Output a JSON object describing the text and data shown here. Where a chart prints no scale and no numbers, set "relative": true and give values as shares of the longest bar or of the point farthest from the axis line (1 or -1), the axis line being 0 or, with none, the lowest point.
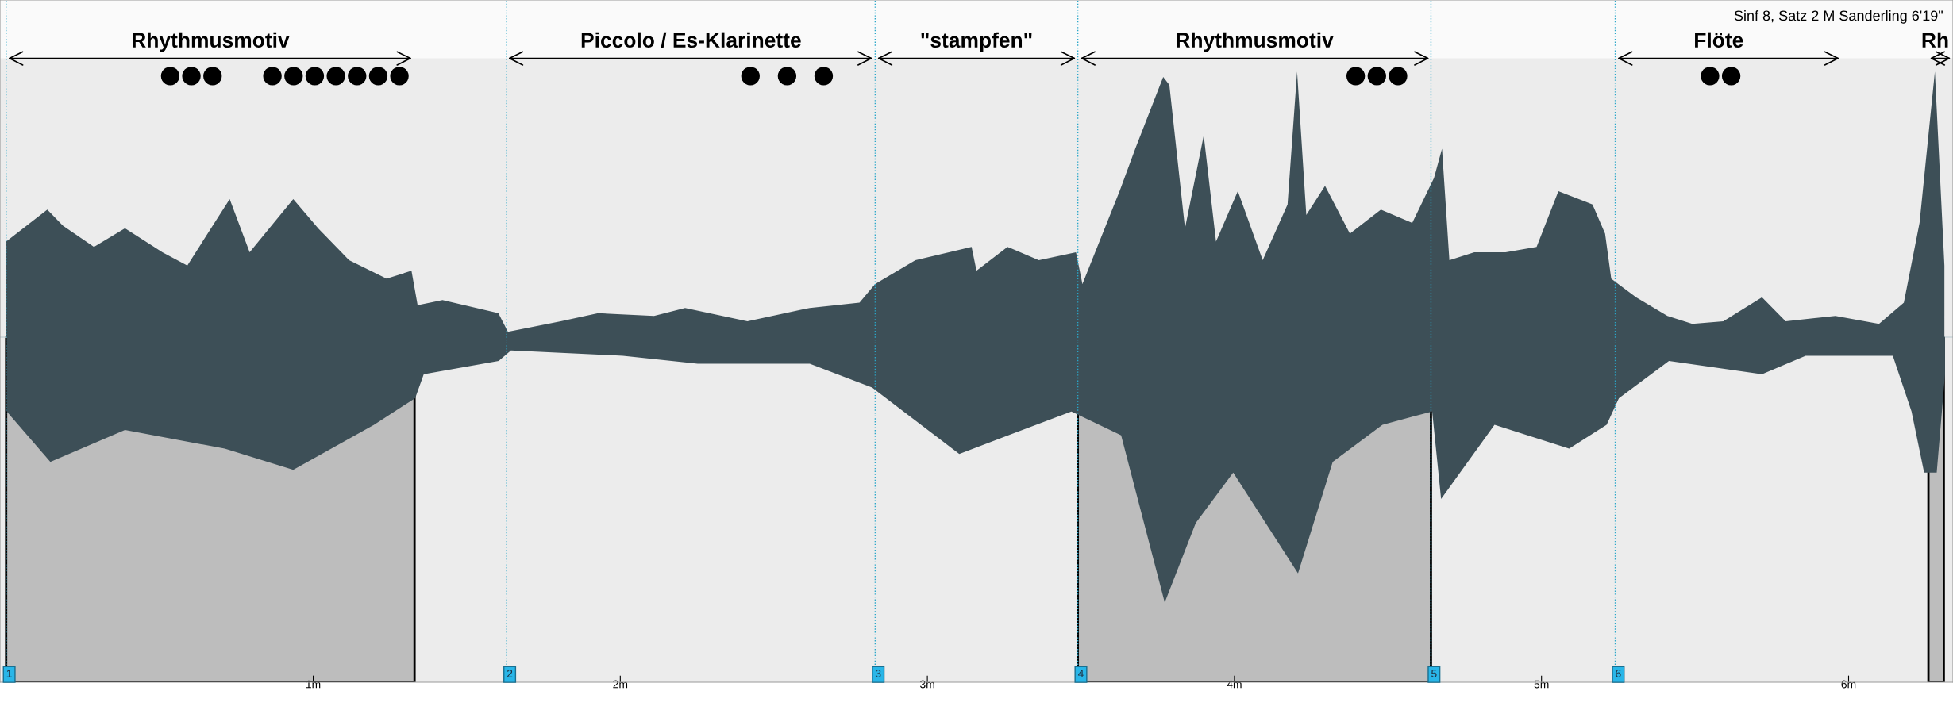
{
  "chart_data": {
    "type": "area",
    "relative": true,
    "annotations": [
      "Sinf 8, Satz 2 M Sanderling 6'19\"",
      "Rhythmusmotiv",
      "Piccolo / Es-Klarinette",
      "\"stampfen\"",
      "Rhythmusmotiv",
      "Flöte",
      "Rh",
      "●●●",
      "●●●●●●●",
      "●  ●  ●",
      "●●●",
      "●●",
      "1",
      "2",
      "3",
      "4",
      "5",
      "6"
    ],
    "series": [
      {
        "color": "#3d4f57",
        "x": [
          0,
          0.134,
          0.185,
          0.286,
          0.387,
          0.509,
          0.59,
          0.728,
          0.793,
          0.935,
          1.016,
          1.117,
          1.239,
          1.32,
          1.34,
          1.421,
          1.603,
          1.634,
          1.806,
          1.928,
          2.11,
          2.211,
          2.414,
          2.617,
          2.779,
          2.83,
          2.961,
          3.144,
          3.16,
          3.261,
          3.363,
          3.484,
          3.505,
          3.626,
          3.677,
          3.768,
          3.788,
          3.839,
          3.9,
          3.94,
          4.011,
          4.092,
          4.173,
          4.204,
          4.234,
          4.295,
          4.376,
          4.477,
          4.579,
          4.65,
          4.676,
          4.7,
          4.781,
          4.883,
          4.984,
          5.055,
          5.166,
          5.207,
          5.227,
          5.308,
          5.41,
          5.491,
          5.592,
          5.718,
          5.795,
          5.957,
          6.099,
          6.18,
          6.231,
          6.281,
          6.312
        ],
        "values": [
          0.36,
          0.48,
          0.42,
          0.34,
          0.41,
          0.32,
          0.27,
          0.52,
          0.32,
          0.52,
          0.41,
          0.29,
          0.22,
          0.25,
          0.12,
          0.14,
          0.09,
          0.02,
          0.06,
          0.09,
          0.08,
          0.11,
          0.06,
          0.11,
          0.13,
          0.2,
          0.29,
          0.34,
          0.25,
          0.34,
          0.29,
          0.32,
          0.2,
          0.55,
          0.71,
          0.98,
          0.95,
          0.41,
          0.76,
          0.36,
          0.55,
          0.29,
          0.5,
          1.0,
          0.46,
          0.57,
          0.39,
          0.48,
          0.43,
          0.6,
          0.71,
          0.29,
          0.32,
          0.32,
          0.34,
          0.55,
          0.5,
          0.39,
          0.22,
          0.15,
          0.08,
          0.05,
          0.06,
          0.15,
          0.06,
          0.08,
          0.05,
          0.13,
          0.43,
          1.0,
          0.27
        ]
      },
      {
        "color": "#3d4f57",
        "x": [
          0.002,
          0.144,
          0.387,
          0.712,
          0.935,
          1.198,
          1.332,
          1.36,
          1.604,
          1.644,
          2.009,
          2.252,
          2.617,
          2.82,
          3.104,
          3.469,
          3.631,
          3.773,
          3.874,
          3.996,
          4.207,
          4.32,
          4.482,
          4.644,
          4.673,
          4.847,
          5.09,
          5.212,
          5.252,
          5.415,
          5.718,
          5.86,
          6.144,
          6.205,
          6.246,
          6.287,
          6.314
        ],
        "values": [
          -0.28,
          -0.47,
          -0.35,
          -0.42,
          -0.5,
          -0.33,
          -0.23,
          -0.14,
          -0.09,
          -0.05,
          -0.07,
          -0.1,
          -0.1,
          -0.19,
          -0.44,
          -0.28,
          -0.37,
          -1.0,
          -0.7,
          -0.51,
          -0.89,
          -0.47,
          -0.33,
          -0.28,
          -0.61,
          -0.33,
          -0.42,
          -0.33,
          -0.23,
          -0.09,
          -0.14,
          -0.07,
          -0.07,
          -0.28,
          -0.51,
          -0.51,
          -0.14
        ]
      }
    ],
    "xlim": [
      -0.02,
      6.34
    ],
    "xticks": [
      {
        "value": 1,
        "label": "1m"
      },
      {
        "value": 2,
        "label": "2m"
      },
      {
        "value": 3,
        "label": "3m"
      },
      {
        "value": 4,
        "label": "4m"
      },
      {
        "value": 5,
        "label": "5m"
      },
      {
        "value": 6,
        "label": "6m"
      }
    ],
    "ref_lines": [
      {
        "axis": "x",
        "value": 0,
        "color": "#2aa7c9",
        "line_style": "dotted"
      },
      {
        "axis": "x",
        "value": 1.63,
        "color": "#2aa7c9",
        "line_style": "dotted"
      },
      {
        "axis": "x",
        "value": 2.83,
        "color": "#2aa7c9",
        "line_style": "dotted"
      },
      {
        "axis": "x",
        "value": 3.49,
        "color": "#2aa7c9",
        "line_style": "dotted"
      },
      {
        "axis": "x",
        "value": 4.64,
        "color": "#2aa7c9",
        "line_style": "dotted"
      },
      {
        "axis": "x",
        "value": 5.24,
        "color": "#2aa7c9",
        "line_style": "dotted"
      }
    ],
    "bands": [
      {
        "axis": "x",
        "from": 0,
        "to": 1.33,
        "color": "#bdbdbd"
      },
      {
        "axis": "x",
        "from": 3.49,
        "to": 4.64,
        "color": "#bdbdbd"
      },
      {
        "axis": "x",
        "from": 6.26,
        "to": 6.31,
        "color": "#bdbdbd"
      }
    ],
    "grid": false
  }
}
